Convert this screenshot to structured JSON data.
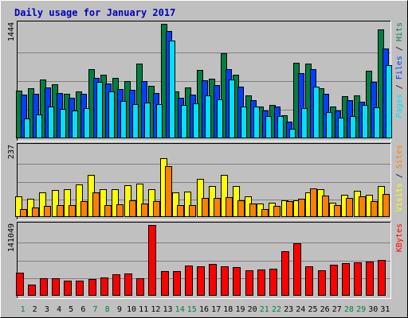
{
  "chart_data": [
    {
      "type": "bar",
      "title": "Daily usage for January 2017",
      "categories": [
        "1",
        "2",
        "3",
        "4",
        "5",
        "6",
        "7",
        "8",
        "9",
        "10",
        "11",
        "12",
        "13",
        "14",
        "15",
        "16",
        "17",
        "18",
        "19",
        "20",
        "21",
        "22",
        "23",
        "24",
        "25",
        "26",
        "27",
        "28",
        "29",
        "30",
        "31"
      ],
      "weekend_days": [
        "1",
        "7",
        "8",
        "14",
        "15",
        "21",
        "22",
        "28",
        "29"
      ],
      "y_max_label": "1444",
      "ylim": [
        0,
        1444
      ],
      "grid": true,
      "legend": [
        "Pages",
        "Files",
        "Hits"
      ],
      "series": [
        {
          "name": "Hits",
          "color": "#008040",
          "values": [
            606,
            636,
            747,
            686,
            566,
            596,
            868,
            798,
            767,
            717,
            939,
            666,
            1444,
            596,
            646,
            858,
            757,
            1070,
            807,
            545,
            404,
            424,
            289,
            949,
            939,
            636,
            404,
            535,
            545,
            848,
            1373
          ]
        },
        {
          "name": "Files",
          "color": "#0040ff",
          "values": [
            555,
            565,
            646,
            575,
            515,
            565,
            767,
            687,
            626,
            616,
            727,
            575,
            1353,
            515,
            555,
            737,
            676,
            868,
            656,
            484,
            353,
            404,
            212,
            818,
            868,
            565,
            353,
            484,
            464,
            707,
            1131
          ]
        },
        {
          "name": "Pages",
          "color": "#00e0ff",
          "values": [
            253,
            300,
            404,
            374,
            353,
            384,
            707,
            595,
            474,
            434,
            454,
            434,
            1232,
            424,
            444,
            545,
            494,
            747,
            404,
            404,
            282,
            283,
            121,
            384,
            656,
            333,
            262,
            283,
            424,
            394,
            919
          ]
        }
      ]
    },
    {
      "type": "bar",
      "categories": [
        "1",
        "2",
        "3",
        "4",
        "5",
        "6",
        "7",
        "8",
        "9",
        "10",
        "11",
        "12",
        "13",
        "14",
        "15",
        "16",
        "17",
        "18",
        "19",
        "20",
        "21",
        "22",
        "23",
        "24",
        "25",
        "26",
        "27",
        "28",
        "29",
        "30",
        "31"
      ],
      "y_max_label": "237",
      "ylim": [
        0,
        237
      ],
      "grid": true,
      "legend": [
        "Visits",
        "Sites"
      ],
      "series": [
        {
          "name": "Visits",
          "color": "#ffff00",
          "values": [
            70,
            60,
            83,
            90,
            93,
            110,
            140,
            94,
            94,
            106,
            113,
            94,
            197,
            83,
            86,
            128,
            104,
            140,
            103,
            70,
            46,
            47,
            57,
            57,
            83,
            93,
            47,
            74,
            87,
            74,
            105
          ]
        },
        {
          "name": "Sites",
          "color": "#ff8000",
          "values": [
            27,
            33,
            36,
            40,
            40,
            53,
            83,
            40,
            42,
            57,
            46,
            53,
            170,
            40,
            40,
            64,
            64,
            66,
            56,
            46,
            26,
            36,
            53,
            60,
            97,
            73,
            40,
            63,
            70,
            53,
            76
          ]
        }
      ]
    },
    {
      "type": "bar",
      "categories": [
        "1",
        "2",
        "3",
        "4",
        "5",
        "6",
        "7",
        "8",
        "9",
        "10",
        "11",
        "12",
        "13",
        "14",
        "15",
        "16",
        "17",
        "18",
        "19",
        "20",
        "21",
        "22",
        "23",
        "24",
        "25",
        "26",
        "27",
        "28",
        "29",
        "30",
        "31"
      ],
      "y_max_label": "141049",
      "ylim": [
        0,
        141049
      ],
      "grid": true,
      "legend": [
        "KBytes"
      ],
      "series": [
        {
          "name": "KBytes",
          "color": "#ff0000",
          "values": [
            45400,
            22000,
            35200,
            34900,
            29400,
            29400,
            33800,
            36700,
            42600,
            44000,
            35200,
            141000,
            48400,
            49900,
            60200,
            58700,
            63100,
            58700,
            57300,
            51400,
            52800,
            54300,
            88100,
            104300,
            58700,
            51400,
            61600,
            64600,
            66100,
            67500,
            72000
          ]
        }
      ]
    }
  ]
}
